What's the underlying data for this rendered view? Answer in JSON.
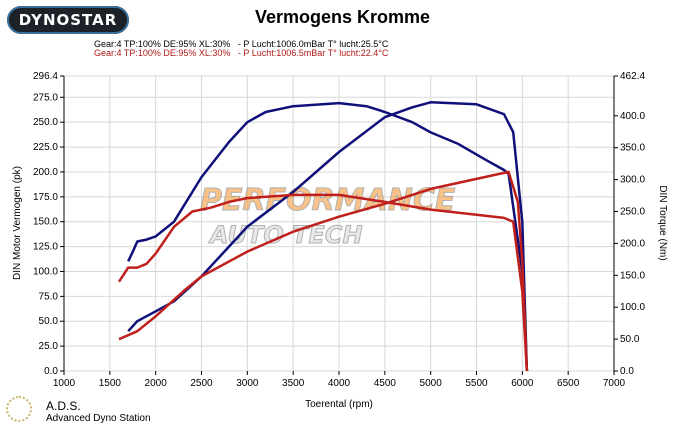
{
  "header": {
    "logo_text": "DYNOSTAR",
    "title": "Vermogens Kromme",
    "run1_info": "Gear:4 TP:100% DE:95% XL:30%   - P Lucht:1006.0mBar T° lucht:25.5°C",
    "run2_info": "Gear:4 TP:100% DE:95% XL:30%   - P Lucht:1006.5mBar T° lucht:22.4°C"
  },
  "footer": {
    "ads_title": "A.D.S.",
    "ads_subtitle": "Advanced Dyno Station"
  },
  "watermark": {
    "line1": "PERFORMANCE",
    "line2": "AUTO TECH"
  },
  "colors": {
    "run1": "#10107a",
    "run2": "#c0201c",
    "grid": "#d8d8d8",
    "watermark": "#f5a24a"
  },
  "chart_data": {
    "type": "line",
    "title": "Vermogens Kromme",
    "xlabel": "Toerental (rpm)",
    "ylabel": "DIN Motor Vermogen (pk)",
    "y2label": "DIN Torque (Nm)",
    "xlim": [
      1000,
      7000
    ],
    "ylim": [
      0,
      296.4
    ],
    "y2lim": [
      0,
      462.4
    ],
    "grid": true,
    "xticks": [
      "1000",
      "1500",
      "2000",
      "2500",
      "3000",
      "3500",
      "4000",
      "4500",
      "5000",
      "5500",
      "6000",
      "6500",
      "7000"
    ],
    "yticks": [
      "0.0",
      "25.0",
      "50.0",
      "75.0",
      "100.0",
      "125.0",
      "150.0",
      "175.0",
      "200.0",
      "225.0",
      "250.0",
      "275.0",
      "296.4"
    ],
    "y2ticks": [
      "0.0",
      "50.0",
      "100.0",
      "150.0",
      "200.0",
      "250.0",
      "300.0",
      "350.0",
      "400.0",
      "462.4"
    ],
    "series": [
      {
        "name": "Run 1 power (pk)",
        "color": "#10107a",
        "axis": "left",
        "x": [
          1700,
          1800,
          2000,
          2200,
          2500,
          2800,
          3000,
          3500,
          4000,
          4500,
          4800,
          5000,
          5500,
          5800,
          5900,
          6000,
          6050
        ],
        "y": [
          40,
          50,
          60,
          70,
          95,
          125,
          145,
          180,
          220,
          255,
          265,
          270,
          268,
          258,
          240,
          150,
          0
        ]
      },
      {
        "name": "Run 1 torque (Nm)",
        "color": "#10107a",
        "axis": "right",
        "x": [
          1700,
          1750,
          1800,
          1900,
          2000,
          2200,
          2500,
          2800,
          3000,
          3200,
          3500,
          4000,
          4300,
          4500,
          4800,
          5000,
          5300,
          5600,
          5800,
          5850,
          6000,
          6050
        ],
        "y": [
          172,
          187,
          203,
          206,
          211,
          234,
          304,
          359,
          390,
          406,
          415,
          420,
          415,
          406,
          390,
          374,
          356,
          331,
          315,
          309,
          156,
          0
        ]
      },
      {
        "name": "Run 2 power (pk)",
        "color": "#c0201c",
        "axis": "left",
        "x": [
          1600,
          1800,
          2000,
          2300,
          2500,
          3000,
          3500,
          4000,
          4500,
          5000,
          5500,
          5850,
          5950,
          6000,
          6050
        ],
        "y": [
          32,
          40,
          55,
          80,
          95,
          120,
          140,
          155,
          168,
          183,
          193,
          200,
          170,
          110,
          0
        ]
      },
      {
        "name": "Run 2 torque (Nm)",
        "color": "#c0201c",
        "axis": "right",
        "x": [
          1600,
          1700,
          1800,
          1900,
          2000,
          2200,
          2400,
          2600,
          2800,
          3000,
          3500,
          4000,
          4500,
          5000,
          5500,
          5800,
          5900,
          6000,
          6050
        ],
        "y": [
          140,
          162,
          162,
          168,
          184,
          226,
          250,
          256,
          265,
          271,
          276,
          276,
          265,
          253,
          245,
          240,
          234,
          125,
          0
        ]
      }
    ]
  }
}
